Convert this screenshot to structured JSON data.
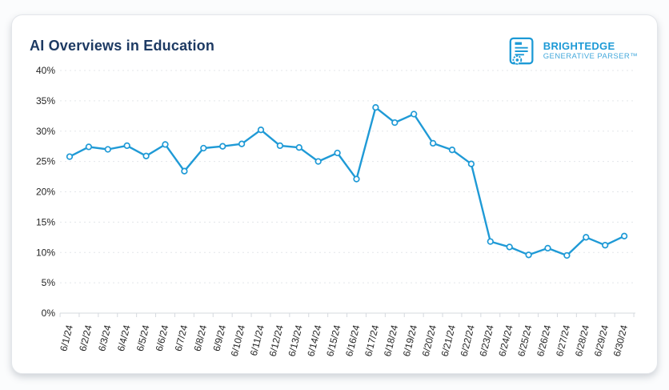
{
  "page": {
    "title": "AI Overviews in Education"
  },
  "logo": {
    "brand": "BRIGHTEDGE",
    "product": "GENERATIVE PARSER™",
    "icon": "document-parser-icon",
    "color": "#1d9ad6"
  },
  "colors": {
    "line": "#1f9ad6",
    "marker_fill": "#ffffff",
    "title": "#1d3a63",
    "gridline": "#e3e6ea",
    "axis_line": "#d5d9de",
    "tick_text": "#252525",
    "card_bg": "#ffffff",
    "card_border": "#e3e6ea",
    "page_bg": "#fbfcfd"
  },
  "chart_data": {
    "type": "line",
    "title": "AI Overviews in Education",
    "xlabel": "",
    "ylabel": "",
    "legend": "none",
    "grid": "horizontal-dashed",
    "marker": "open-circle",
    "line_color": "#1f9ad6",
    "ylim": [
      0,
      40
    ],
    "yticks": [
      0,
      5,
      10,
      15,
      20,
      25,
      30,
      35,
      40
    ],
    "ytick_labels": [
      "0%",
      "5%",
      "10%",
      "15%",
      "20%",
      "25%",
      "30%",
      "35%",
      "40%"
    ],
    "x": [
      "6/1/24",
      "6/2/24",
      "6/3/24",
      "6/4/24",
      "6/5/24",
      "6/6/24",
      "6/7/24",
      "6/8/24",
      "6/9/24",
      "6/10/24",
      "6/11/24",
      "6/12/24",
      "6/13/24",
      "6/14/24",
      "6/15/24",
      "6/16/24",
      "6/17/24",
      "6/18/24",
      "6/19/24",
      "6/20/24",
      "6/21/24",
      "6/22/24",
      "6/23/24",
      "6/24/24",
      "6/25/24",
      "6/26/24",
      "6/27/24",
      "6/28/24",
      "6/29/24",
      "6/30/24"
    ],
    "series": [
      {
        "name": "AI Overviews in Education",
        "values": [
          25.8,
          27.4,
          27.0,
          27.6,
          25.9,
          27.8,
          23.4,
          27.2,
          27.5,
          27.9,
          30.2,
          27.6,
          27.3,
          25.0,
          26.4,
          22.1,
          33.9,
          31.4,
          32.8,
          28.0,
          26.9,
          24.6,
          11.8,
          10.9,
          9.6,
          10.7,
          9.5,
          12.5,
          11.2,
          12.7
        ]
      }
    ]
  }
}
